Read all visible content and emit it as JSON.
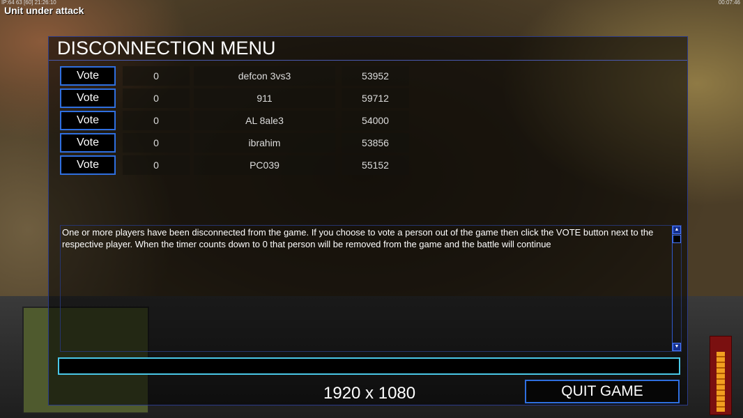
{
  "hud": {
    "info": "IP:64 63 [60] 21:26:10",
    "alert": "Unit under attack",
    "clock": "00:07:46"
  },
  "menu": {
    "title": "DISCONNECTION MENU",
    "players": [
      {
        "vote_label": "Vote",
        "votes": "0",
        "name": "defcon 3vs3",
        "timer": "53952"
      },
      {
        "vote_label": "Vote",
        "votes": "0",
        "name": "911",
        "timer": "59712"
      },
      {
        "vote_label": "Vote",
        "votes": "0",
        "name": "AL 8ale3",
        "timer": "54000"
      },
      {
        "vote_label": "Vote",
        "votes": "0",
        "name": "ibrahim",
        "timer": "53856"
      },
      {
        "vote_label": "Vote",
        "votes": "0",
        "name": "PC039",
        "timer": "55152"
      }
    ],
    "message": "One or more players have been disconnected from the game. If you choose to vote a person out of the game then click the VOTE button next to the respective player. When the timer counts down to 0 that person will be removed from the game and the battle will continue",
    "chat_value": "",
    "resolution": "1920 x 1080",
    "quit_label": "QUIT GAME"
  },
  "colors": {
    "button_border": "#2f6fe0",
    "input_border": "#4ac8e8"
  }
}
